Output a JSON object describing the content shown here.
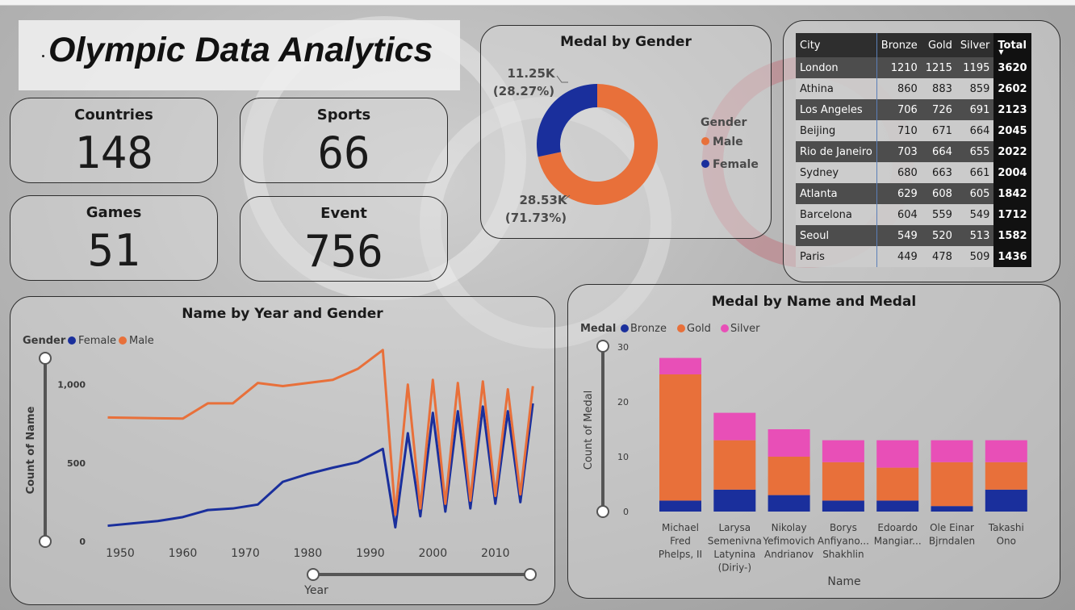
{
  "title": "Olympic Data Analytics",
  "kpis": [
    {
      "label": "Countries",
      "value": "148"
    },
    {
      "label": "Sports",
      "value": "66"
    },
    {
      "label": "Games",
      "value": "51"
    },
    {
      "label": "Event",
      "value": "756"
    }
  ],
  "gender_chart": {
    "title": "Medal by Gender",
    "legend_title": "Gender",
    "slices": [
      {
        "name": "Male",
        "value": 28.53,
        "label": "28.53K",
        "pct": "(71.73%)",
        "color": "#e8703a"
      },
      {
        "name": "Female",
        "value": 11.25,
        "label": "11.25K",
        "pct": "(28.27%)",
        "color": "#1a2f9c"
      }
    ]
  },
  "city_table": {
    "headers": [
      "City",
      "Bronze",
      "Gold",
      "Silver",
      "Total"
    ],
    "rows": [
      [
        "London",
        "1210",
        "1215",
        "1195",
        "3620"
      ],
      [
        "Athina",
        "860",
        "883",
        "859",
        "2602"
      ],
      [
        "Los Angeles",
        "706",
        "726",
        "691",
        "2123"
      ],
      [
        "Beijing",
        "710",
        "671",
        "664",
        "2045"
      ],
      [
        "Rio de Janeiro",
        "703",
        "664",
        "655",
        "2022"
      ],
      [
        "Sydney",
        "680",
        "663",
        "661",
        "2004"
      ],
      [
        "Atlanta",
        "629",
        "608",
        "605",
        "1842"
      ],
      [
        "Barcelona",
        "604",
        "559",
        "549",
        "1712"
      ],
      [
        "Seoul",
        "549",
        "520",
        "513",
        "1582"
      ],
      [
        "Paris",
        "449",
        "478",
        "509",
        "1436"
      ]
    ]
  },
  "line_chart": {
    "title": "Name by Year and Gender",
    "legend_title": "Gender",
    "xlabel": "Year",
    "ylabel": "Count of Name"
  },
  "bar_chart": {
    "title": "Medal by Name and Medal",
    "legend_title": "Medal",
    "xlabel": "Name",
    "ylabel": "Count of Medal"
  },
  "chart_data": [
    {
      "type": "line",
      "title": "Name by Year and Gender",
      "xlabel": "Year",
      "ylabel": "Count of Name",
      "xlim": [
        1946,
        2017
      ],
      "ylim": [
        0,
        1250
      ],
      "x_ticks": [
        1950,
        1960,
        1970,
        1980,
        1990,
        2000,
        2010
      ],
      "y_ticks": [
        0,
        500,
        1000
      ],
      "y_tick_labels": [
        "0",
        "500",
        "1,000"
      ],
      "x": [
        1948,
        1952,
        1956,
        1960,
        1964,
        1968,
        1972,
        1976,
        1980,
        1984,
        1988,
        1992,
        1994,
        1996,
        1998,
        2000,
        2002,
        2004,
        2006,
        2008,
        2010,
        2012,
        2014,
        2016
      ],
      "series": [
        {
          "name": "Female",
          "color": "#1a2f9c",
          "values": [
            100,
            115,
            130,
            155,
            200,
            210,
            235,
            380,
            430,
            470,
            505,
            590,
            90,
            690,
            160,
            820,
            190,
            830,
            210,
            860,
            240,
            830,
            250,
            880
          ]
        },
        {
          "name": "Male",
          "color": "#e8703a",
          "values": [
            790,
            788,
            785,
            783,
            880,
            880,
            1010,
            990,
            1010,
            1030,
            1100,
            1220,
            170,
            1000,
            210,
            1030,
            240,
            1010,
            260,
            1020,
            290,
            970,
            300,
            990
          ]
        }
      ],
      "legend": "top-left"
    },
    {
      "type": "bar",
      "stacked": true,
      "title": "Medal by Name and Medal",
      "xlabel": "Name",
      "ylabel": "Count of Medal",
      "ylim": [
        0,
        30
      ],
      "y_ticks": [
        0,
        10,
        20,
        30
      ],
      "categories": [
        [
          "Michael",
          "Fred",
          "Phelps, II"
        ],
        [
          "Larysa",
          "Semenivna",
          "Latynina",
          "(Diriy-)"
        ],
        [
          "Nikolay",
          "Yefimovich",
          "Andrianov"
        ],
        [
          "Borys",
          "Anfiyano...",
          "Shakhlin"
        ],
        [
          "Edoardo",
          "Mangiar..."
        ],
        [
          "Ole Einar",
          "Bjrndalen"
        ],
        [
          "Takashi",
          "Ono"
        ]
      ],
      "series": [
        {
          "name": "Bronze",
          "color": "#1a2f9c",
          "values": [
            2,
            4,
            3,
            2,
            2,
            1,
            4
          ]
        },
        {
          "name": "Gold",
          "color": "#e8703a",
          "values": [
            23,
            9,
            7,
            7,
            6,
            8,
            5
          ]
        },
        {
          "name": "Silver",
          "color": "#e84fb7",
          "values": [
            3,
            5,
            5,
            4,
            5,
            4,
            4
          ]
        }
      ],
      "legend": "top-left"
    }
  ]
}
